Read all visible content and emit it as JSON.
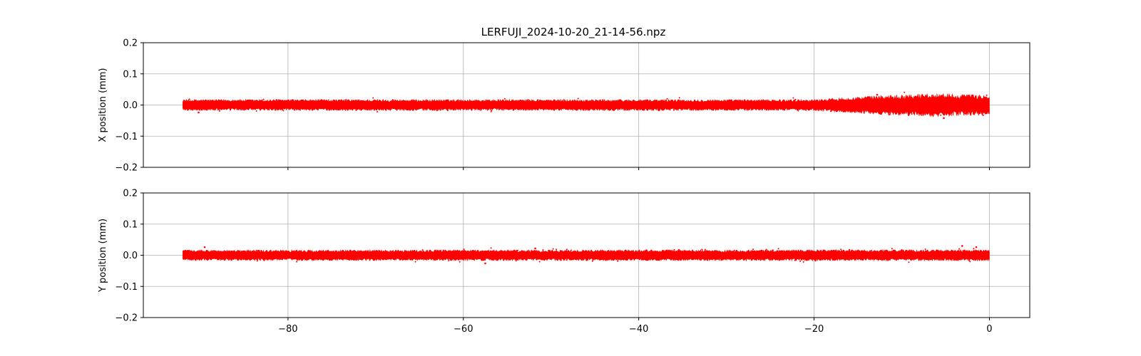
{
  "chart_data": {
    "type": "scatter",
    "title": "LERFUJI_2024-10-20_21-14-56.npz",
    "x_ticks": [
      "−80",
      "−60",
      "−40",
      "−20",
      "0"
    ],
    "x_tick_values": [
      -80,
      -60,
      -40,
      -20,
      0
    ],
    "xlim": [
      -96.5,
      4.6
    ],
    "color": "#ff0000",
    "grid": true,
    "panels": [
      {
        "ylabel": "X position (mm)",
        "ylim": [
          -0.2,
          0.2
        ],
        "y_ticks": [
          "0.2",
          "0.1",
          "0.0",
          "−0.1",
          "−0.2"
        ],
        "y_tick_values": [
          0.2,
          0.1,
          0.0,
          -0.1,
          -0.2
        ],
        "series": [
          {
            "x_range": [
              -92,
              0
            ],
            "y_center": 0.0,
            "noise_profile": [
              {
                "x": -92,
                "amplitude": 0.018
              },
              {
                "x": -20,
                "amplitude": 0.018
              },
              {
                "x": -16,
                "amplitude": 0.025
              },
              {
                "x": -12,
                "amplitude": 0.032
              },
              {
                "x": -6,
                "amplitude": 0.038
              },
              {
                "x": 0,
                "amplitude": 0.032
              }
            ],
            "outliers": [
              [
                -90.2,
                -0.024
              ],
              [
                -81.3,
                0.016
              ],
              [
                -12.8,
                0.033
              ],
              [
                -5.2,
                -0.042
              ],
              [
                -2.4,
                0.03
              ]
            ]
          }
        ]
      },
      {
        "ylabel": "Y position (mm)",
        "ylim": [
          -0.2,
          0.2
        ],
        "y_ticks": [
          "0.2",
          "0.1",
          "0.0",
          "−0.1",
          "−0.2"
        ],
        "y_tick_values": [
          0.2,
          0.1,
          0.0,
          -0.1,
          -0.2
        ],
        "series": [
          {
            "x_range": [
              -92,
              0
            ],
            "y_center": 0.0,
            "noise_profile": [
              {
                "x": -92,
                "amplitude": 0.017
              },
              {
                "x": 0,
                "amplitude": 0.018
              }
            ],
            "outliers": [
              [
                -89.5,
                0.026
              ],
              [
                -51.8,
                0.022
              ],
              [
                -57.5,
                -0.026
              ],
              [
                -3.1,
                0.03
              ],
              [
                -1.5,
                0.026
              ]
            ]
          }
        ]
      }
    ]
  }
}
